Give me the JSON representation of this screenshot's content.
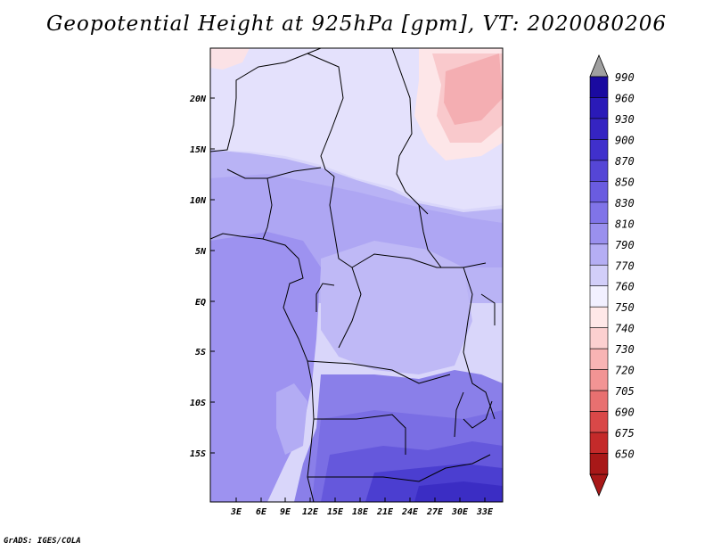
{
  "title": "Geopotential Height at 925hPa [gpm], VT: 2020080206",
  "footer": "GrADS: IGES/COLA",
  "map": {
    "lat_labels": [
      "20N",
      "15N",
      "10N",
      "5N",
      "EQ",
      "5S",
      "10S",
      "15S"
    ],
    "lon_labels": [
      "3E",
      "6E",
      "9E",
      "12E",
      "15E",
      "18E",
      "21E",
      "24E",
      "27E",
      "30E",
      "33E"
    ]
  },
  "colorbar": {
    "levels": [
      "990",
      "960",
      "930",
      "900",
      "870",
      "850",
      "830",
      "810",
      "790",
      "770",
      "760",
      "750",
      "740",
      "730",
      "720",
      "705",
      "690",
      "675",
      "650"
    ],
    "colors": [
      "#1a0aa0",
      "#2a1ab8",
      "#3524c2",
      "#4030cc",
      "#5546d6",
      "#6a5ce0",
      "#8074e8",
      "#9a90ee",
      "#b5aef4",
      "#d2cef9",
      "#f2f0ff",
      "#ffe8e8",
      "#fcd0d0",
      "#f8b4b4",
      "#f29494",
      "#e87070",
      "#d94848",
      "#c42a2a",
      "#a81818"
    ],
    "top_color": "#a0a0a0",
    "bottom_color": "#a81818"
  }
}
